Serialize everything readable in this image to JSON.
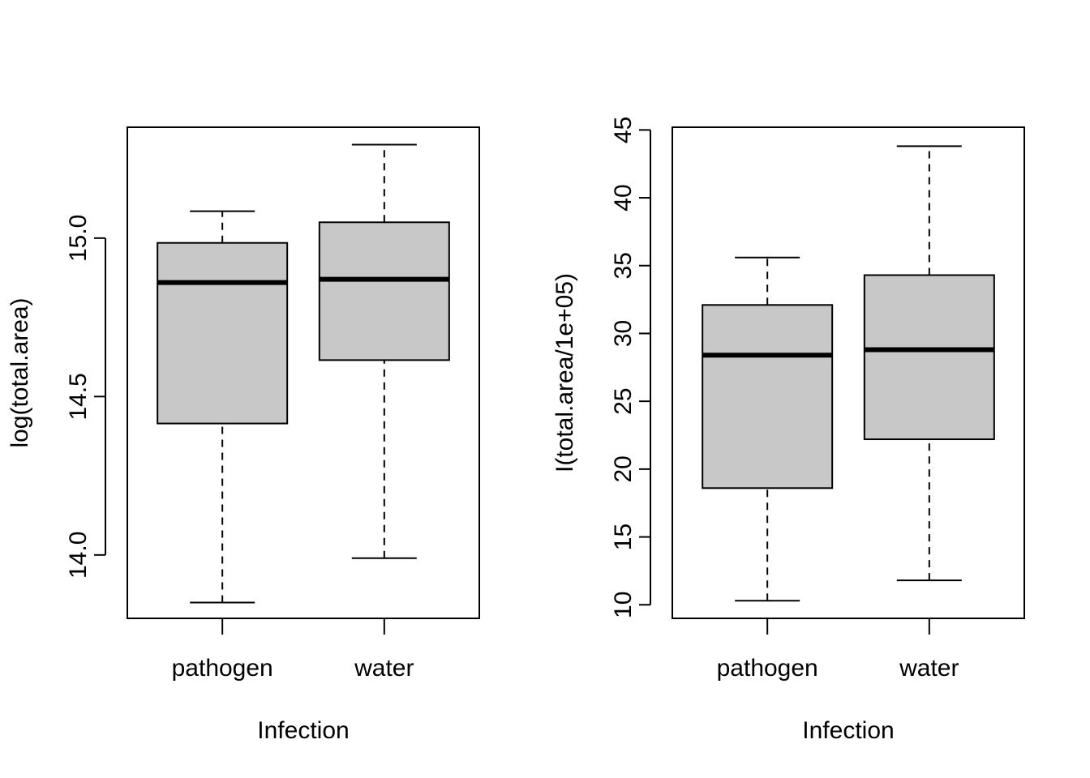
{
  "chart_data": [
    {
      "type": "box",
      "xlabel": "Infection",
      "ylabel": "log(total.area)",
      "categories": [
        "pathogen",
        "water"
      ],
      "ylim": [
        13.8,
        15.35
      ],
      "yticks": [
        14.0,
        14.5,
        15.0
      ],
      "ytick_labels": [
        "14.0",
        "14.5",
        "15.0"
      ],
      "boxes": [
        {
          "category": "pathogen",
          "whisker_low": 13.85,
          "q1": 14.415,
          "median": 14.86,
          "q3": 14.985,
          "whisker_high": 15.085
        },
        {
          "category": "water",
          "whisker_low": 13.99,
          "q1": 14.615,
          "median": 14.87,
          "q3": 15.05,
          "whisker_high": 15.295
        }
      ],
      "box_fill": "#c8c8c8",
      "grid": false
    },
    {
      "type": "box",
      "xlabel": "Infection",
      "ylabel": "I(total.area/1e+05)",
      "categories": [
        "pathogen",
        "water"
      ],
      "ylim": [
        9,
        45.2
      ],
      "yticks": [
        10,
        15,
        20,
        25,
        30,
        35,
        40,
        45
      ],
      "ytick_labels": [
        "10",
        "15",
        "20",
        "25",
        "30",
        "35",
        "40",
        "45"
      ],
      "boxes": [
        {
          "category": "pathogen",
          "whisker_low": 10.3,
          "q1": 18.6,
          "median": 28.4,
          "q3": 32.1,
          "whisker_high": 35.6
        },
        {
          "category": "water",
          "whisker_low": 11.8,
          "q1": 22.2,
          "median": 28.8,
          "q3": 34.3,
          "whisker_high": 43.8
        }
      ],
      "box_fill": "#c8c8c8",
      "grid": false
    }
  ]
}
